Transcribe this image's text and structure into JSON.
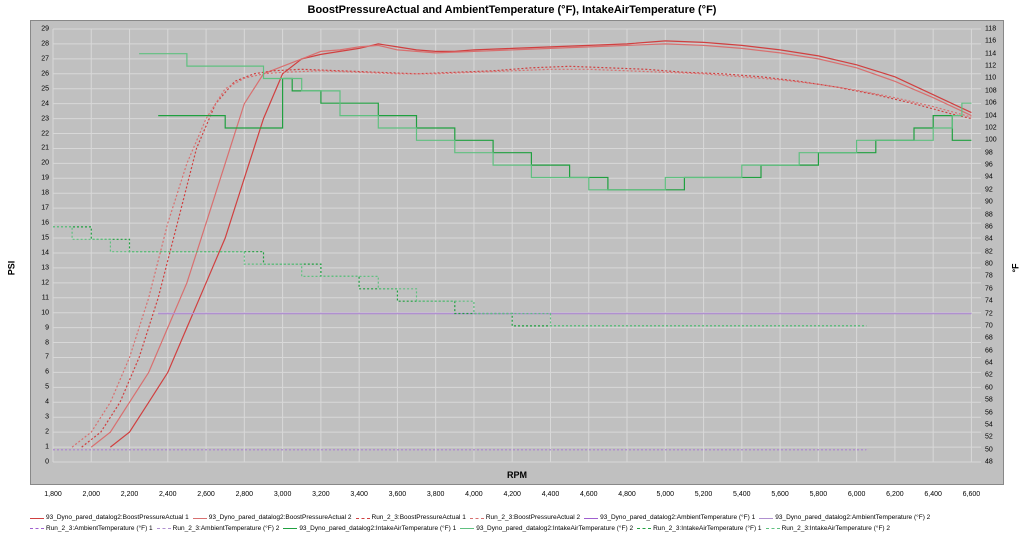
{
  "title": "BoostPressureActual and AmbientTemperature (°F), IntakeAirTemperature (°F)",
  "x_axis": {
    "label": "RPM",
    "min": 1800,
    "max": 6650,
    "ticks": [
      1800,
      2000,
      2200,
      2400,
      2600,
      2800,
      3000,
      3200,
      3400,
      3600,
      3800,
      4000,
      4200,
      4400,
      4600,
      4800,
      5000,
      5200,
      5400,
      5600,
      5800,
      6000,
      6200,
      6400,
      6600
    ],
    "tick_labels": [
      "1,800",
      "2,000",
      "2,200",
      "2,400",
      "2,600",
      "2,800",
      "3,000",
      "3,200",
      "3,400",
      "3,600",
      "3,800",
      "4,000",
      "4,200",
      "4,400",
      "4,600",
      "4,800",
      "5,000",
      "5,200",
      "5,400",
      "5,600",
      "5,800",
      "6,000",
      "6,200",
      "6,400",
      "6,600"
    ]
  },
  "y1_axis": {
    "label": "PSI",
    "min": 0,
    "max": 29,
    "ticks": [
      0,
      1,
      2,
      3,
      4,
      5,
      6,
      7,
      8,
      9,
      10,
      11,
      12,
      13,
      14,
      15,
      16,
      17,
      18,
      19,
      20,
      21,
      22,
      23,
      24,
      25,
      26,
      27,
      28,
      29
    ]
  },
  "y2_axis": {
    "label": "°F",
    "min": 48,
    "max": 118,
    "ticks": [
      48,
      50,
      52,
      54,
      56,
      58,
      60,
      62,
      64,
      66,
      68,
      70,
      72,
      74,
      76,
      78,
      80,
      82,
      84,
      86,
      88,
      90,
      92,
      94,
      96,
      98,
      100,
      102,
      104,
      106,
      108,
      110,
      112,
      114,
      116,
      118
    ]
  },
  "colors": {
    "background": "#c0c0c0",
    "grid": "#d8d8d8",
    "boost_a": "#d04040",
    "boost_b": "#d87070",
    "ambient_a": "#a060d0",
    "ambient_b": "#b090d0",
    "intake_a": "#20a040",
    "intake_b": "#60c080"
  },
  "series": [
    {
      "name": "93_Dyno_pared_datalog2:BoostPressureActual 1",
      "axis": "y1",
      "color": "#d04040",
      "style": "solid",
      "points": [
        [
          2100,
          1
        ],
        [
          2200,
          2
        ],
        [
          2300,
          4
        ],
        [
          2400,
          6
        ],
        [
          2500,
          9
        ],
        [
          2600,
          12
        ],
        [
          2700,
          15
        ],
        [
          2800,
          19
        ],
        [
          2900,
          23
        ],
        [
          3000,
          26
        ],
        [
          3100,
          27
        ],
        [
          3200,
          27.3
        ],
        [
          3300,
          27.5
        ],
        [
          3400,
          27.7
        ],
        [
          3500,
          28
        ],
        [
          3600,
          27.8
        ],
        [
          3700,
          27.6
        ],
        [
          3800,
          27.5
        ],
        [
          3900,
          27.5
        ],
        [
          4000,
          27.6
        ],
        [
          4200,
          27.7
        ],
        [
          4400,
          27.8
        ],
        [
          4600,
          27.9
        ],
        [
          4800,
          28
        ],
        [
          5000,
          28.2
        ],
        [
          5200,
          28.1
        ],
        [
          5400,
          27.9
        ],
        [
          5600,
          27.6
        ],
        [
          5800,
          27.2
        ],
        [
          6000,
          26.6
        ],
        [
          6200,
          25.8
        ],
        [
          6400,
          24.6
        ],
        [
          6600,
          23.4
        ]
      ]
    },
    {
      "name": "93_Dyno_pared_datalog2:BoostPressureActual 2",
      "axis": "y1",
      "color": "#d87070",
      "style": "solid",
      "points": [
        [
          2000,
          1
        ],
        [
          2100,
          2
        ],
        [
          2200,
          4
        ],
        [
          2300,
          6
        ],
        [
          2400,
          9
        ],
        [
          2500,
          12
        ],
        [
          2600,
          16
        ],
        [
          2700,
          20
        ],
        [
          2800,
          24
        ],
        [
          2900,
          26
        ],
        [
          3000,
          26.5
        ],
        [
          3100,
          27
        ],
        [
          3200,
          27.5
        ],
        [
          3300,
          27.6
        ],
        [
          3400,
          27.8
        ],
        [
          3500,
          27.9
        ],
        [
          3600,
          27.6
        ],
        [
          3800,
          27.4
        ],
        [
          4000,
          27.5
        ],
        [
          4200,
          27.6
        ],
        [
          4400,
          27.7
        ],
        [
          4600,
          27.8
        ],
        [
          4800,
          27.9
        ],
        [
          5000,
          28
        ],
        [
          5200,
          27.9
        ],
        [
          5400,
          27.7
        ],
        [
          5600,
          27.4
        ],
        [
          5800,
          27
        ],
        [
          6000,
          26.4
        ],
        [
          6200,
          25.5
        ],
        [
          6400,
          24.4
        ],
        [
          6600,
          23.2
        ]
      ]
    },
    {
      "name": "Run_2_3:BoostPressureActual 1",
      "axis": "y1",
      "color": "#d04040",
      "style": "dashed",
      "points": [
        [
          1950,
          1
        ],
        [
          2050,
          2
        ],
        [
          2150,
          4
        ],
        [
          2250,
          7
        ],
        [
          2350,
          11
        ],
        [
          2450,
          16
        ],
        [
          2550,
          21
        ],
        [
          2650,
          24
        ],
        [
          2750,
          25.5
        ],
        [
          2850,
          26
        ],
        [
          2950,
          26.2
        ],
        [
          3100,
          26.3
        ],
        [
          3300,
          26.2
        ],
        [
          3500,
          26.1
        ],
        [
          3700,
          26
        ],
        [
          3900,
          26.1
        ],
        [
          4100,
          26.2
        ],
        [
          4300,
          26.4
        ],
        [
          4500,
          26.5
        ],
        [
          4700,
          26.4
        ],
        [
          4900,
          26.3
        ],
        [
          5100,
          26.1
        ],
        [
          5300,
          26
        ],
        [
          5500,
          25.8
        ],
        [
          5700,
          25.5
        ],
        [
          5900,
          25.1
        ],
        [
          6100,
          24.6
        ],
        [
          6300,
          24
        ],
        [
          6500,
          23.3
        ],
        [
          6600,
          23
        ]
      ]
    },
    {
      "name": "Run_2_3:BoostPressureActual 2",
      "axis": "y1",
      "color": "#d87070",
      "style": "dashed",
      "points": [
        [
          1900,
          1
        ],
        [
          2000,
          2
        ],
        [
          2100,
          4
        ],
        [
          2200,
          7
        ],
        [
          2300,
          11
        ],
        [
          2400,
          16
        ],
        [
          2500,
          20
        ],
        [
          2600,
          23
        ],
        [
          2700,
          25
        ],
        [
          2800,
          25.7
        ],
        [
          2900,
          26
        ],
        [
          3000,
          26.1
        ],
        [
          3200,
          26.2
        ],
        [
          3400,
          26.1
        ],
        [
          3600,
          26
        ],
        [
          3800,
          26
        ],
        [
          4000,
          26.1
        ],
        [
          4200,
          26.2
        ],
        [
          4400,
          26.3
        ],
        [
          4600,
          26.3
        ],
        [
          4800,
          26.2
        ],
        [
          5000,
          26.1
        ],
        [
          5200,
          26
        ],
        [
          5400,
          25.8
        ],
        [
          5600,
          25.6
        ],
        [
          5800,
          25.3
        ],
        [
          6000,
          24.9
        ],
        [
          6200,
          24.4
        ],
        [
          6400,
          23.8
        ],
        [
          6600,
          23.1
        ]
      ]
    },
    {
      "name": "93_Dyno_pared_datalog2:AmbientTemperature (°F) 1",
      "axis": "y2",
      "color": "#a060d0",
      "style": "solid",
      "points": [
        [
          2350,
          72
        ],
        [
          6600,
          72
        ]
      ]
    },
    {
      "name": "93_Dyno_pared_datalog2:AmbientTemperature (°F) 2",
      "axis": "y2",
      "color": "#b090d0",
      "style": "solid",
      "points": [
        [
          2350,
          72
        ],
        [
          6600,
          72
        ]
      ]
    },
    {
      "name": "Run_2_3:AmbientTemperature (°F) 1",
      "axis": "y2",
      "color": "#a060d0",
      "style": "dashed",
      "points": [
        [
          1800,
          50
        ],
        [
          6050,
          50
        ]
      ]
    },
    {
      "name": "Run_2_3:AmbientTemperature (°F) 2",
      "axis": "y2",
      "color": "#b090d0",
      "style": "dashed",
      "points": [
        [
          1800,
          50
        ],
        [
          6050,
          50
        ]
      ]
    },
    {
      "name": "93_Dyno_pared_datalog2:IntakeAirTemperature (°F) 1",
      "axis": "y2",
      "color": "#20a040",
      "style": "solid",
      "points": [
        [
          2350,
          104
        ],
        [
          2700,
          104
        ],
        [
          2700,
          102
        ],
        [
          3000,
          102
        ],
        [
          3000,
          110
        ],
        [
          3050,
          110
        ],
        [
          3050,
          108
        ],
        [
          3200,
          108
        ],
        [
          3200,
          106
        ],
        [
          3500,
          106
        ],
        [
          3500,
          104
        ],
        [
          3700,
          104
        ],
        [
          3700,
          102
        ],
        [
          3900,
          102
        ],
        [
          3900,
          100
        ],
        [
          4100,
          100
        ],
        [
          4100,
          98
        ],
        [
          4300,
          98
        ],
        [
          4300,
          96
        ],
        [
          4500,
          96
        ],
        [
          4500,
          94
        ],
        [
          4700,
          94
        ],
        [
          4700,
          92
        ],
        [
          5100,
          92
        ],
        [
          5100,
          94
        ],
        [
          5500,
          94
        ],
        [
          5500,
          96
        ],
        [
          5800,
          96
        ],
        [
          5800,
          98
        ],
        [
          6100,
          98
        ],
        [
          6100,
          100
        ],
        [
          6300,
          100
        ],
        [
          6300,
          102
        ],
        [
          6400,
          102
        ],
        [
          6400,
          104
        ],
        [
          6500,
          104
        ],
        [
          6500,
          100
        ],
        [
          6600,
          100
        ]
      ]
    },
    {
      "name": "93_Dyno_pared_datalog2:IntakeAirTemperature (°F) 2",
      "axis": "y2",
      "color": "#60c080",
      "style": "solid",
      "points": [
        [
          2250,
          114
        ],
        [
          2500,
          114
        ],
        [
          2500,
          112
        ],
        [
          2900,
          112
        ],
        [
          2900,
          110
        ],
        [
          3100,
          110
        ],
        [
          3100,
          108
        ],
        [
          3300,
          108
        ],
        [
          3300,
          104
        ],
        [
          3500,
          104
        ],
        [
          3500,
          102
        ],
        [
          3700,
          102
        ],
        [
          3700,
          100
        ],
        [
          3900,
          100
        ],
        [
          3900,
          98
        ],
        [
          4100,
          98
        ],
        [
          4100,
          96
        ],
        [
          4300,
          96
        ],
        [
          4300,
          94
        ],
        [
          4600,
          94
        ],
        [
          4600,
          92
        ],
        [
          5000,
          92
        ],
        [
          5000,
          94
        ],
        [
          5400,
          94
        ],
        [
          5400,
          96
        ],
        [
          5700,
          96
        ],
        [
          5700,
          98
        ],
        [
          6000,
          98
        ],
        [
          6000,
          100
        ],
        [
          6400,
          100
        ],
        [
          6400,
          102
        ],
        [
          6500,
          102
        ],
        [
          6500,
          104
        ],
        [
          6550,
          104
        ],
        [
          6550,
          106
        ],
        [
          6600,
          106
        ]
      ]
    },
    {
      "name": "Run_2_3:IntakeAirTemperature (°F) 1",
      "axis": "y2",
      "color": "#20a040",
      "style": "dashed",
      "points": [
        [
          1800,
          86
        ],
        [
          2000,
          86
        ],
        [
          2000,
          84
        ],
        [
          2200,
          84
        ],
        [
          2200,
          82
        ],
        [
          2400,
          82
        ],
        [
          2400,
          82
        ],
        [
          2700,
          82
        ],
        [
          2700,
          82
        ],
        [
          2900,
          82
        ],
        [
          2900,
          80
        ],
        [
          3100,
          80
        ],
        [
          3100,
          80
        ],
        [
          3200,
          80
        ],
        [
          3200,
          78
        ],
        [
          3400,
          78
        ],
        [
          3400,
          76
        ],
        [
          3600,
          76
        ],
        [
          3600,
          74
        ],
        [
          3900,
          74
        ],
        [
          3900,
          72
        ],
        [
          4200,
          72
        ],
        [
          4200,
          70
        ],
        [
          5800,
          70
        ],
        [
          5800,
          70
        ],
        [
          6050,
          70
        ]
      ]
    },
    {
      "name": "Run_2_3:IntakeAirTemperature (°F) 2",
      "axis": "y2",
      "color": "#60c080",
      "style": "dashed",
      "points": [
        [
          1800,
          86
        ],
        [
          1900,
          86
        ],
        [
          1900,
          84
        ],
        [
          2100,
          84
        ],
        [
          2100,
          82
        ],
        [
          2400,
          82
        ],
        [
          2400,
          82
        ],
        [
          2700,
          82
        ],
        [
          2700,
          82
        ],
        [
          2800,
          82
        ],
        [
          2800,
          80
        ],
        [
          3000,
          80
        ],
        [
          3000,
          80
        ],
        [
          3100,
          80
        ],
        [
          3100,
          78
        ],
        [
          3300,
          78
        ],
        [
          3300,
          78
        ],
        [
          3500,
          78
        ],
        [
          3500,
          76
        ],
        [
          3700,
          76
        ],
        [
          3700,
          74
        ],
        [
          4000,
          74
        ],
        [
          4000,
          72
        ],
        [
          4400,
          72
        ],
        [
          4400,
          70
        ],
        [
          6050,
          70
        ]
      ]
    }
  ],
  "legend": [
    {
      "label": "93_Dyno_pared_datalog2:BoostPressureActual 1",
      "color": "#d04040",
      "style": "solid"
    },
    {
      "label": "93_Dyno_pared_datalog2:BoostPressureActual 2",
      "color": "#d87070",
      "style": "solid"
    },
    {
      "label": "Run_2_3:BoostPressureActual 1",
      "color": "#d04040",
      "style": "dashed"
    },
    {
      "label": "Run_2_3:BoostPressureActual 2",
      "color": "#d87070",
      "style": "dashed"
    },
    {
      "label": "93_Dyno_pared_datalog2:AmbientTemperature (°F) 1",
      "color": "#a060d0",
      "style": "solid"
    },
    {
      "label": "93_Dyno_pared_datalog2:AmbientTemperature (°F) 2",
      "color": "#b090d0",
      "style": "solid"
    },
    {
      "label": "Run_2_3:AmbientTemperature (°F) 1",
      "color": "#a060d0",
      "style": "dashed"
    },
    {
      "label": "Run_2_3:AmbientTemperature (°F) 2",
      "color": "#b090d0",
      "style": "dashed"
    },
    {
      "label": "93_Dyno_pared_datalog2:IntakeAirTemperature (°F) 1",
      "color": "#20a040",
      "style": "solid"
    },
    {
      "label": "93_Dyno_pared_datalog2:IntakeAirTemperature (°F) 2",
      "color": "#60c080",
      "style": "solid"
    },
    {
      "label": "Run_2_3:IntakeAirTemperature (°F) 1",
      "color": "#20a040",
      "style": "dashed"
    },
    {
      "label": "Run_2_3:IntakeAirTemperature (°F) 2",
      "color": "#60c080",
      "style": "dashed"
    }
  ]
}
